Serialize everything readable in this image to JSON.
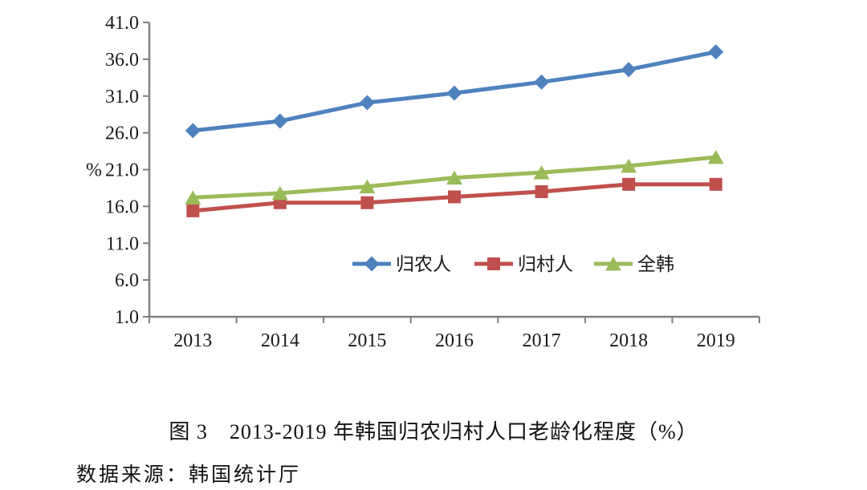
{
  "figure": {
    "caption": "图 3　2013-2019 年韩国归农归村人口老龄化程度（%）",
    "source": "数据来源：韩国统计厅"
  },
  "chart_data": {
    "type": "line",
    "categories": [
      "2013",
      "2014",
      "2015",
      "2016",
      "2017",
      "2018",
      "2019"
    ],
    "series": [
      {
        "name": "归农人",
        "color": "#4F81BD",
        "marker": "diamond",
        "values": [
          26.3,
          27.6,
          30.1,
          31.4,
          32.9,
          34.6,
          37.0
        ]
      },
      {
        "name": "归村人",
        "color": "#C0504D",
        "marker": "square",
        "values": [
          15.4,
          16.5,
          16.5,
          17.3,
          18.0,
          19.0,
          19.0
        ]
      },
      {
        "name": "全韩",
        "color": "#9BBB59",
        "marker": "triangle",
        "values": [
          17.2,
          17.8,
          18.7,
          19.9,
          20.6,
          21.5,
          22.7
        ]
      }
    ],
    "xlabel": "",
    "ylabel": "%",
    "ylim": [
      1.0,
      41.0
    ],
    "yticks": [
      "41.0",
      "36.0",
      "31.0",
      "26.0",
      "21.0",
      "16.0",
      "11.0",
      "6.0",
      "1.0"
    ],
    "grid": false,
    "legend_position": "inside-bottom-center",
    "axis_color": "#808080",
    "text_color": "#1a1a1a"
  }
}
